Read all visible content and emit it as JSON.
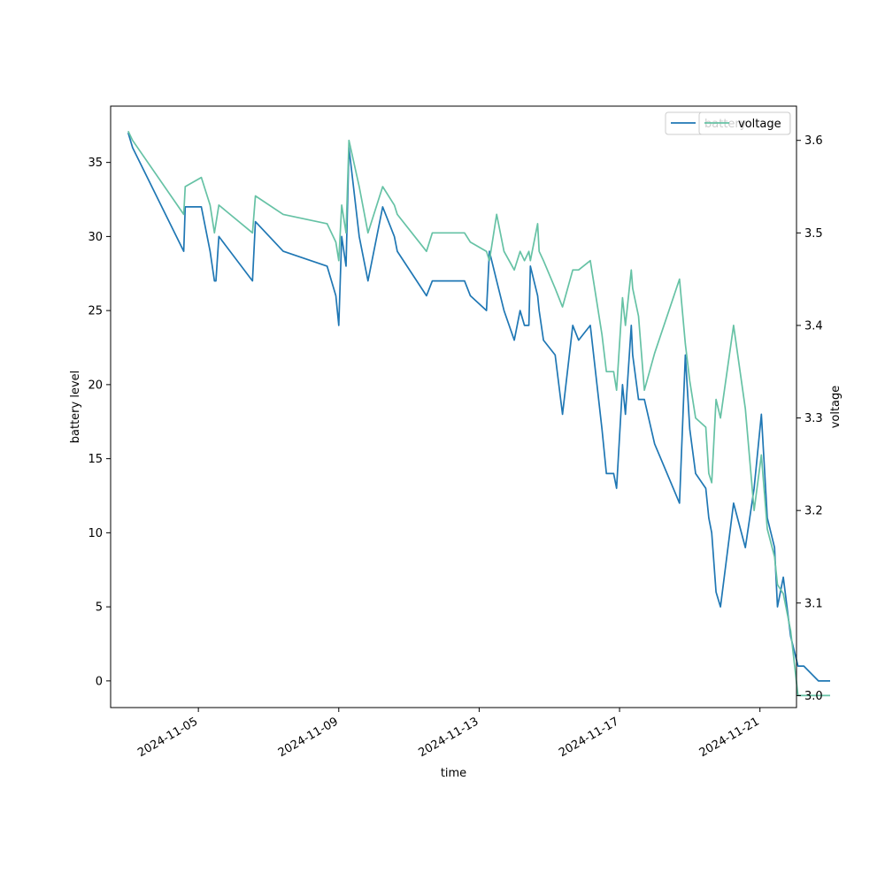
{
  "chart_data": {
    "type": "line",
    "xlabel": "time",
    "ylabel_left": "battery level",
    "ylabel_right": "voltage",
    "xlim": [
      "2024-11-02T12:00",
      "2024-11-22T01:00"
    ],
    "ylim_left": [
      -1.8,
      38.8
    ],
    "ylim_right": [
      2.987,
      3.637
    ],
    "x_ticks": [
      "2024-11-05",
      "2024-11-09",
      "2024-11-13",
      "2024-11-17",
      "2024-11-21"
    ],
    "y_ticks_left": [
      0,
      5,
      10,
      15,
      20,
      25,
      30,
      35
    ],
    "y_ticks_right": [
      3.0,
      3.1,
      3.2,
      3.3,
      3.4,
      3.5,
      3.6
    ],
    "grid": false,
    "colors": {
      "battery": "#1f77b4",
      "voltage": "#66c2a5"
    },
    "legends": [
      {
        "placement": "top-right",
        "entries": [
          "battery"
        ]
      },
      {
        "placement": "top-right",
        "entries": [
          "voltage"
        ]
      }
    ],
    "series": [
      {
        "name": "battery",
        "axis": "left",
        "x": [
          "2024-11-03T00:00",
          "2024-11-03T03:00",
          "2024-11-04T14:00",
          "2024-11-04T15:00",
          "2024-11-05T02:00",
          "2024-11-05T08:00",
          "2024-11-05T11:00",
          "2024-11-05T12:00",
          "2024-11-05T14:00",
          "2024-11-06T13:00",
          "2024-11-06T15:00",
          "2024-11-07T10:00",
          "2024-11-08T16:00",
          "2024-11-08T22:00",
          "2024-11-09T00:00",
          "2024-11-09T02:00",
          "2024-11-09T05:00",
          "2024-11-09T07:00",
          "2024-11-09T14:00",
          "2024-11-09T20:00",
          "2024-11-10T06:00",
          "2024-11-10T14:00",
          "2024-11-10T16:00",
          "2024-11-11T12:00",
          "2024-11-11T16:00",
          "2024-11-12T14:00",
          "2024-11-12T18:00",
          "2024-11-13T05:00",
          "2024-11-13T07:00",
          "2024-11-13T12:00",
          "2024-11-13T17:00",
          "2024-11-14T00:00",
          "2024-11-14T04:00",
          "2024-11-14T07:00",
          "2024-11-14T10:00",
          "2024-11-14T11:00",
          "2024-11-14T16:00",
          "2024-11-14T17:00",
          "2024-11-14T20:00",
          "2024-11-15T04:00",
          "2024-11-15T09:00",
          "2024-11-15T16:00",
          "2024-11-15T20:00",
          "2024-11-16T04:00",
          "2024-11-16T12:00",
          "2024-11-16T15:00",
          "2024-11-16T20:00",
          "2024-11-16T22:00",
          "2024-11-17T02:00",
          "2024-11-17T04:00",
          "2024-11-17T08:00",
          "2024-11-17T09:00",
          "2024-11-17T13:00",
          "2024-11-17T17:00",
          "2024-11-18T00:00",
          "2024-11-18T17:00",
          "2024-11-18T21:00",
          "2024-11-19T00:00",
          "2024-11-19T04:00",
          "2024-11-19T11:00",
          "2024-11-19T13:00",
          "2024-11-19T15:00",
          "2024-11-19T18:00",
          "2024-11-19T21:00",
          "2024-11-20T06:00",
          "2024-11-20T14:00",
          "2024-11-20T20:00",
          "2024-11-21T01:00",
          "2024-11-21T05:00",
          "2024-11-21T10:00",
          "2024-11-21T12:00",
          "2024-11-21T16:00",
          "2024-11-21T21:00",
          "2024-11-22T02:00",
          "2024-11-22T06:00",
          "2024-11-22T16:00",
          "2024-11-23T00:00"
        ],
        "values": [
          37,
          36,
          29,
          32,
          32,
          29,
          27,
          27,
          30,
          27,
          31,
          29,
          28,
          26,
          24,
          30,
          28,
          36,
          30,
          27,
          32,
          30,
          29,
          26,
          27,
          27,
          26,
          25,
          29,
          27,
          25,
          23,
          25,
          24,
          24,
          28,
          26,
          25,
          23,
          22,
          18,
          24,
          23,
          24,
          17,
          14,
          14,
          13,
          20,
          18,
          24,
          22,
          19,
          19,
          16,
          12,
          22,
          17,
          14,
          13,
          11,
          10,
          6,
          5,
          12,
          9,
          13,
          18,
          11,
          9,
          5,
          7,
          3,
          1,
          1,
          0,
          0
        ],
        "values_note_removed": ""
      },
      {
        "name": "voltage",
        "axis": "right",
        "x": [
          "2024-11-03T00:00",
          "2024-11-03T03:00",
          "2024-11-04T14:00",
          "2024-11-04T15:00",
          "2024-11-05T02:00",
          "2024-11-05T08:00",
          "2024-11-05T11:00",
          "2024-11-05T14:00",
          "2024-11-06T13:00",
          "2024-11-06T15:00",
          "2024-11-07T10:00",
          "2024-11-08T16:00",
          "2024-11-08T22:00",
          "2024-11-09T00:00",
          "2024-11-09T02:00",
          "2024-11-09T05:00",
          "2024-11-09T07:00",
          "2024-11-09T14:00",
          "2024-11-09T20:00",
          "2024-11-10T06:00",
          "2024-11-10T14:00",
          "2024-11-10T16:00",
          "2024-11-11T12:00",
          "2024-11-11T16:00",
          "2024-11-12T14:00",
          "2024-11-12T18:00",
          "2024-11-13T05:00",
          "2024-11-13T07:00",
          "2024-11-13T12:00",
          "2024-11-13T17:00",
          "2024-11-14T00:00",
          "2024-11-14T04:00",
          "2024-11-14T07:00",
          "2024-11-14T10:00",
          "2024-11-14T11:00",
          "2024-11-14T16:00",
          "2024-11-14T17:00",
          "2024-11-14T20:00",
          "2024-11-15T04:00",
          "2024-11-15T09:00",
          "2024-11-15T16:00",
          "2024-11-15T20:00",
          "2024-11-16T04:00",
          "2024-11-16T12:00",
          "2024-11-16T15:00",
          "2024-11-16T20:00",
          "2024-11-16T22:00",
          "2024-11-17T02:00",
          "2024-11-17T04:00",
          "2024-11-17T08:00",
          "2024-11-17T09:00",
          "2024-11-17T13:00",
          "2024-11-17T17:00",
          "2024-11-18T00:00",
          "2024-11-18T17:00",
          "2024-11-18T21:00",
          "2024-11-19T00:00",
          "2024-11-19T04:00",
          "2024-11-19T11:00",
          "2024-11-19T13:00",
          "2024-11-19T15:00",
          "2024-11-19T18:00",
          "2024-11-19T21:00",
          "2024-11-20T06:00",
          "2024-11-20T14:00",
          "2024-11-20T20:00",
          "2024-11-21T01:00",
          "2024-11-21T05:00",
          "2024-11-21T10:00",
          "2024-11-21T12:00",
          "2024-11-21T16:00",
          "2024-11-21T21:00",
          "2024-11-22T02:00",
          "2024-11-22T06:00",
          "2024-11-22T16:00",
          "2024-11-23T00:00"
        ],
        "values": [
          3.61,
          3.6,
          3.52,
          3.55,
          3.56,
          3.53,
          3.5,
          3.53,
          3.5,
          3.54,
          3.52,
          3.51,
          3.49,
          3.47,
          3.53,
          3.5,
          3.6,
          3.55,
          3.5,
          3.55,
          3.53,
          3.52,
          3.48,
          3.5,
          3.5,
          3.49,
          3.48,
          3.47,
          3.52,
          3.48,
          3.46,
          3.48,
          3.47,
          3.48,
          3.47,
          3.51,
          3.48,
          3.47,
          3.44,
          3.42,
          3.46,
          3.46,
          3.47,
          3.39,
          3.35,
          3.35,
          3.33,
          3.43,
          3.4,
          3.46,
          3.44,
          3.41,
          3.33,
          3.37,
          3.45,
          3.38,
          3.34,
          3.3,
          3.29,
          3.24,
          3.23,
          3.32,
          3.3,
          3.4,
          3.31,
          3.2,
          3.26,
          3.18,
          3.15,
          3.12,
          3.11,
          3.07,
          3.0,
          3.0,
          3.0,
          3.0
        ]
      }
    ]
  }
}
